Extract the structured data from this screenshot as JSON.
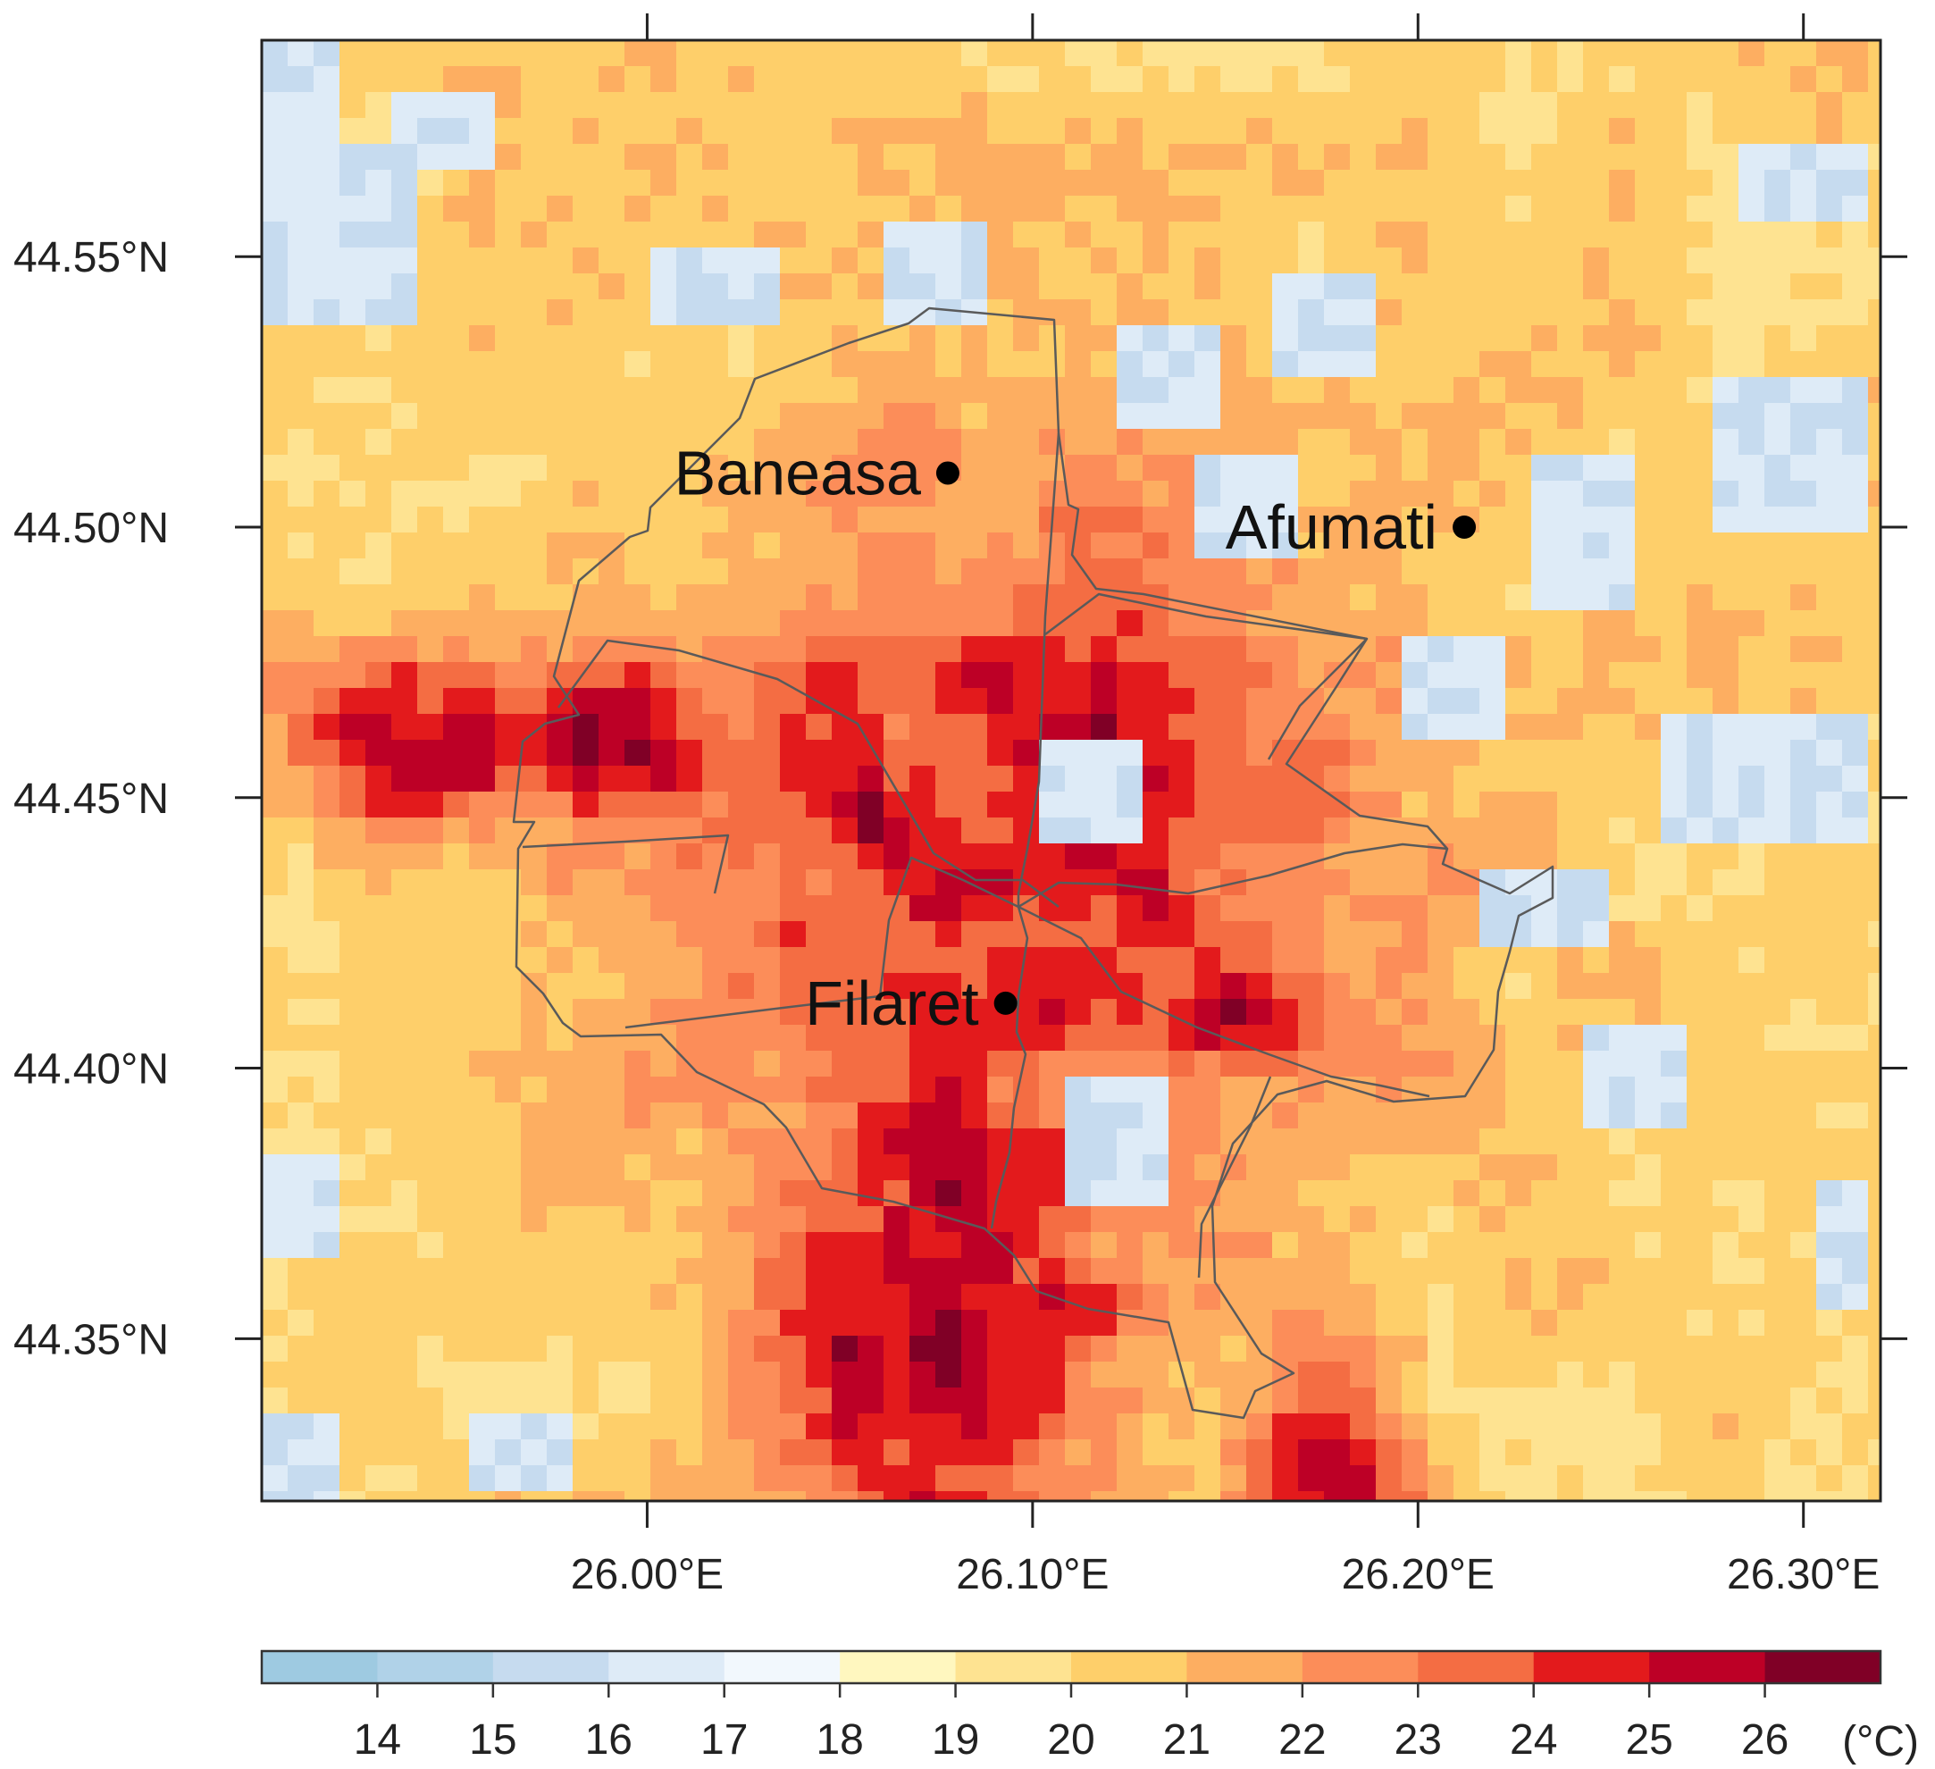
{
  "map": {
    "lon_range": [
      25.9,
      26.32
    ],
    "lat_range": [
      44.32,
      44.59
    ],
    "x_ticks": [
      {
        "value": 26.0,
        "label": "26.00°E"
      },
      {
        "value": 26.1,
        "label": "26.10°E"
      },
      {
        "value": 26.2,
        "label": "26.20°E"
      },
      {
        "value": 26.3,
        "label": "26.30°E"
      }
    ],
    "y_ticks": [
      {
        "value": 44.35,
        "label": "44.35°N"
      },
      {
        "value": 44.4,
        "label": "44.40°N"
      },
      {
        "value": 44.45,
        "label": "44.45°N"
      },
      {
        "value": 44.5,
        "label": "44.50°N"
      },
      {
        "value": 44.55,
        "label": "44.55°N"
      }
    ],
    "stations": [
      {
        "name": "Baneasa",
        "lon": 26.078,
        "lat": 44.51
      },
      {
        "name": "Afumati",
        "lon": 26.212,
        "lat": 44.5
      },
      {
        "name": "Filaret",
        "lon": 26.093,
        "lat": 44.412
      }
    ],
    "field": {
      "variable": "temperature",
      "urban_center": [
        26.1,
        44.44
      ],
      "urban_peak": 25.5,
      "rural_background": 20.3
    }
  },
  "colorbar": {
    "unit": "(°C)",
    "bins": [
      {
        "from": 13,
        "to": 14,
        "color": "#9ecae1"
      },
      {
        "from": 14,
        "to": 15,
        "color": "#b0d2e8"
      },
      {
        "from": 15,
        "to": 16,
        "color": "#c6dbef"
      },
      {
        "from": 16,
        "to": 17,
        "color": "#deebf7"
      },
      {
        "from": 17,
        "to": 18,
        "color": "#f2f8fd"
      },
      {
        "from": 18,
        "to": 19,
        "color": "#fff7bf"
      },
      {
        "from": 19,
        "to": 20,
        "color": "#fee391"
      },
      {
        "from": 20,
        "to": 21,
        "color": "#fecf6a"
      },
      {
        "from": 21,
        "to": 22,
        "color": "#fdae61"
      },
      {
        "from": 22,
        "to": 23,
        "color": "#fc8d59"
      },
      {
        "from": 23,
        "to": 24,
        "color": "#f46d43"
      },
      {
        "from": 24,
        "to": 25,
        "color": "#e31a1c"
      },
      {
        "from": 25,
        "to": 26,
        "color": "#bd0026"
      },
      {
        "from": 26,
        "to": 27,
        "color": "#800026"
      }
    ],
    "tick_labels": [
      "14",
      "15",
      "16",
      "17",
      "18",
      "19",
      "20",
      "21",
      "22",
      "23",
      "24",
      "25",
      "26"
    ]
  }
}
